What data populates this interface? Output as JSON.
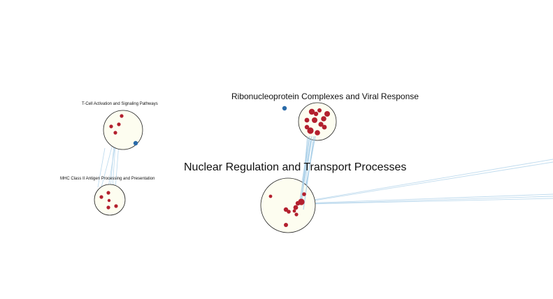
{
  "clusters": [
    {
      "id": "tcell",
      "label": "T-Cell Activation and Signaling Pathways"
    },
    {
      "id": "mhc",
      "label": "MHC Class II Antigen Processing and Presentation"
    },
    {
      "id": "ribo",
      "label": "Ribonucleoprotein Complexes and Viral Response"
    },
    {
      "id": "nuclear",
      "label": "Nuclear Regulation and Transport Processes"
    }
  ],
  "colors": {
    "cluster_fill": "#fdfdf0",
    "cluster_stroke": "#222222",
    "node_red": "#b3202e",
    "node_blue": "#2a6aa8",
    "edge": "#a9cfe8"
  }
}
